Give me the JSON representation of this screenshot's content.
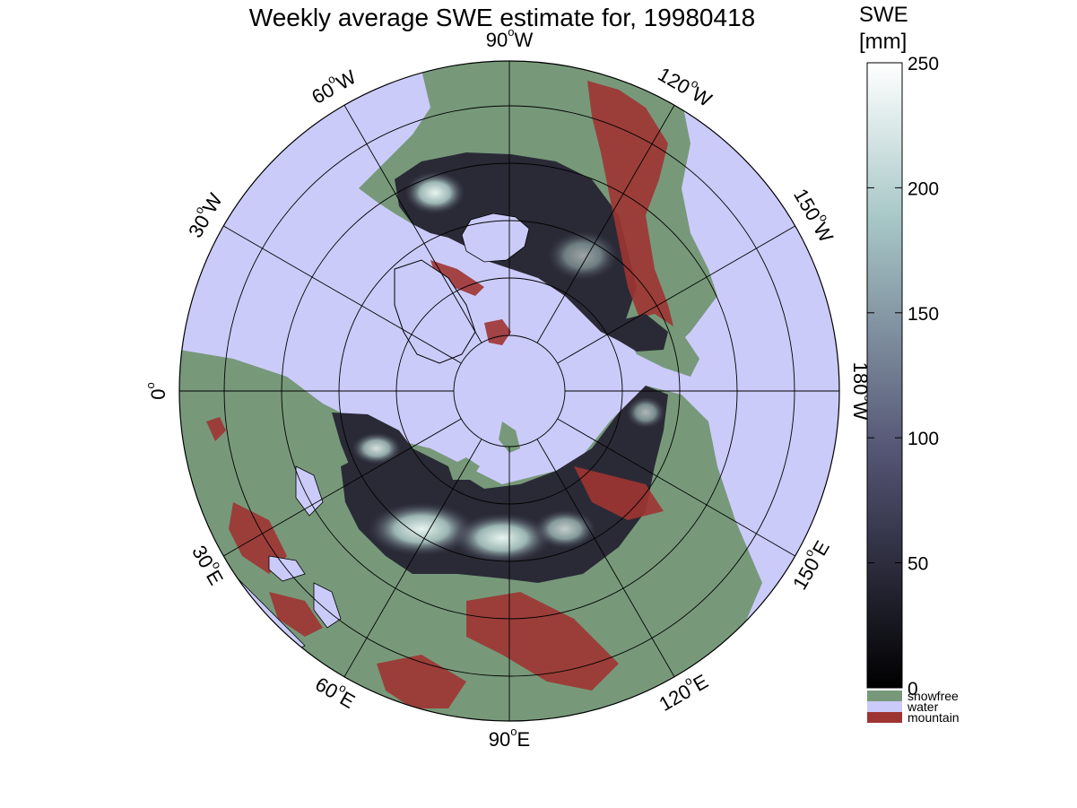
{
  "title": "Weekly average SWE estimate for, 19980418",
  "map": {
    "projection": "north polar stereographic",
    "longitude_labels": [
      {
        "text": "90",
        "suffix": "W",
        "lon": -90
      },
      {
        "text": "60",
        "suffix": "W",
        "lon": -60
      },
      {
        "text": "120",
        "suffix": "W",
        "lon": -120
      },
      {
        "text": "30",
        "suffix": "W",
        "lon": -30
      },
      {
        "text": "150",
        "suffix": "W",
        "lon": -150
      },
      {
        "text": "0",
        "suffix": "",
        "lon": 0
      },
      {
        "text": "180",
        "suffix": "W",
        "lon": 180
      },
      {
        "text": "30",
        "suffix": "E",
        "lon": 30
      },
      {
        "text": "150",
        "suffix": "E",
        "lon": 150
      },
      {
        "text": "60",
        "suffix": "E",
        "lon": 60
      },
      {
        "text": "120",
        "suffix": "E",
        "lon": 120
      },
      {
        "text": "90",
        "suffix": "E",
        "lon": 90
      }
    ],
    "colors": {
      "water": "#cbcbfa",
      "snowfree": "#77997a",
      "mountain": "#9e3432",
      "grid": "#000000"
    }
  },
  "colorbar": {
    "label_line1": "SWE",
    "label_line2": "[mm]",
    "min": 0,
    "max": 250,
    "ticks": [
      "0",
      "50",
      "100",
      "150",
      "200",
      "250"
    ],
    "colormap": "bone (black to white)"
  },
  "legend": [
    {
      "label": "snowfree",
      "color": "#77997a"
    },
    {
      "label": "water",
      "color": "#cbcbfa"
    },
    {
      "label": "mountain",
      "color": "#9e3432"
    }
  ]
}
